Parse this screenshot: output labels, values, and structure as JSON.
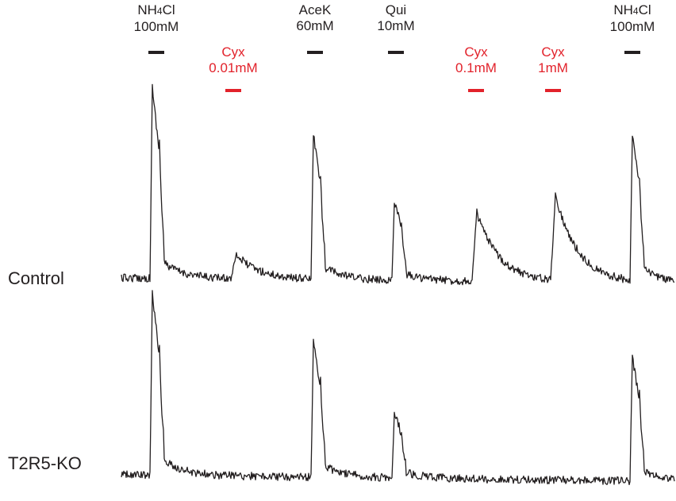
{
  "colors": {
    "trace": "#231f20",
    "control_stimulus": "#231f20",
    "test_stimulus": "#e2222b"
  },
  "stimuli": [
    {
      "name": "NH4Cl",
      "conc": "100mM",
      "color": "#231f20",
      "row": 0
    },
    {
      "name": "Cyx",
      "conc": "0.01mM",
      "color": "#e2222b",
      "row": 1
    },
    {
      "name": "AceK",
      "conc": "60mM",
      "color": "#231f20",
      "row": 0
    },
    {
      "name": "Qui",
      "conc": "10mM",
      "color": "#231f20",
      "row": 0
    },
    {
      "name": "Cyx",
      "conc": "0.1mM",
      "color": "#e2222b",
      "row": 1
    },
    {
      "name": "Cyx",
      "conc": "1mM",
      "color": "#e2222b",
      "row": 1
    },
    {
      "name": "NH4Cl",
      "conc": "100mM",
      "color": "#231f20",
      "row": 0
    }
  ],
  "chart_data": {
    "type": "line",
    "title": "",
    "xlabel": "",
    "ylabel": "",
    "axes_visible": false,
    "grid": false,
    "x_unit": "time (stimulus order)",
    "series": [
      {
        "name": "Control",
        "responses": [
          {
            "stimulus": "NH4Cl 100mM",
            "amplitude": 1.0
          },
          {
            "stimulus": "Cyx 0.01mM",
            "amplitude": 0.13
          },
          {
            "stimulus": "AceK 60mM",
            "amplitude": 0.76
          },
          {
            "stimulus": "Qui 10mM",
            "amplitude": 0.42
          },
          {
            "stimulus": "Cyx 0.1mM",
            "amplitude": 0.36
          },
          {
            "stimulus": "Cyx 1mM",
            "amplitude": 0.45
          },
          {
            "stimulus": "NH4Cl 100mM",
            "amplitude": 0.76
          }
        ]
      },
      {
        "name": "T2R5-KO",
        "responses": [
          {
            "stimulus": "NH4Cl 100mM",
            "amplitude": 1.0
          },
          {
            "stimulus": "Cyx 0.01mM",
            "amplitude": 0.0
          },
          {
            "stimulus": "AceK 60mM",
            "amplitude": 0.75
          },
          {
            "stimulus": "Qui 10mM",
            "amplitude": 0.37
          },
          {
            "stimulus": "Cyx 0.1mM",
            "amplitude": 0.0
          },
          {
            "stimulus": "Cyx 1mM",
            "amplitude": 0.0
          },
          {
            "stimulus": "NH4Cl 100mM",
            "amplitude": 0.68
          }
        ]
      }
    ]
  }
}
